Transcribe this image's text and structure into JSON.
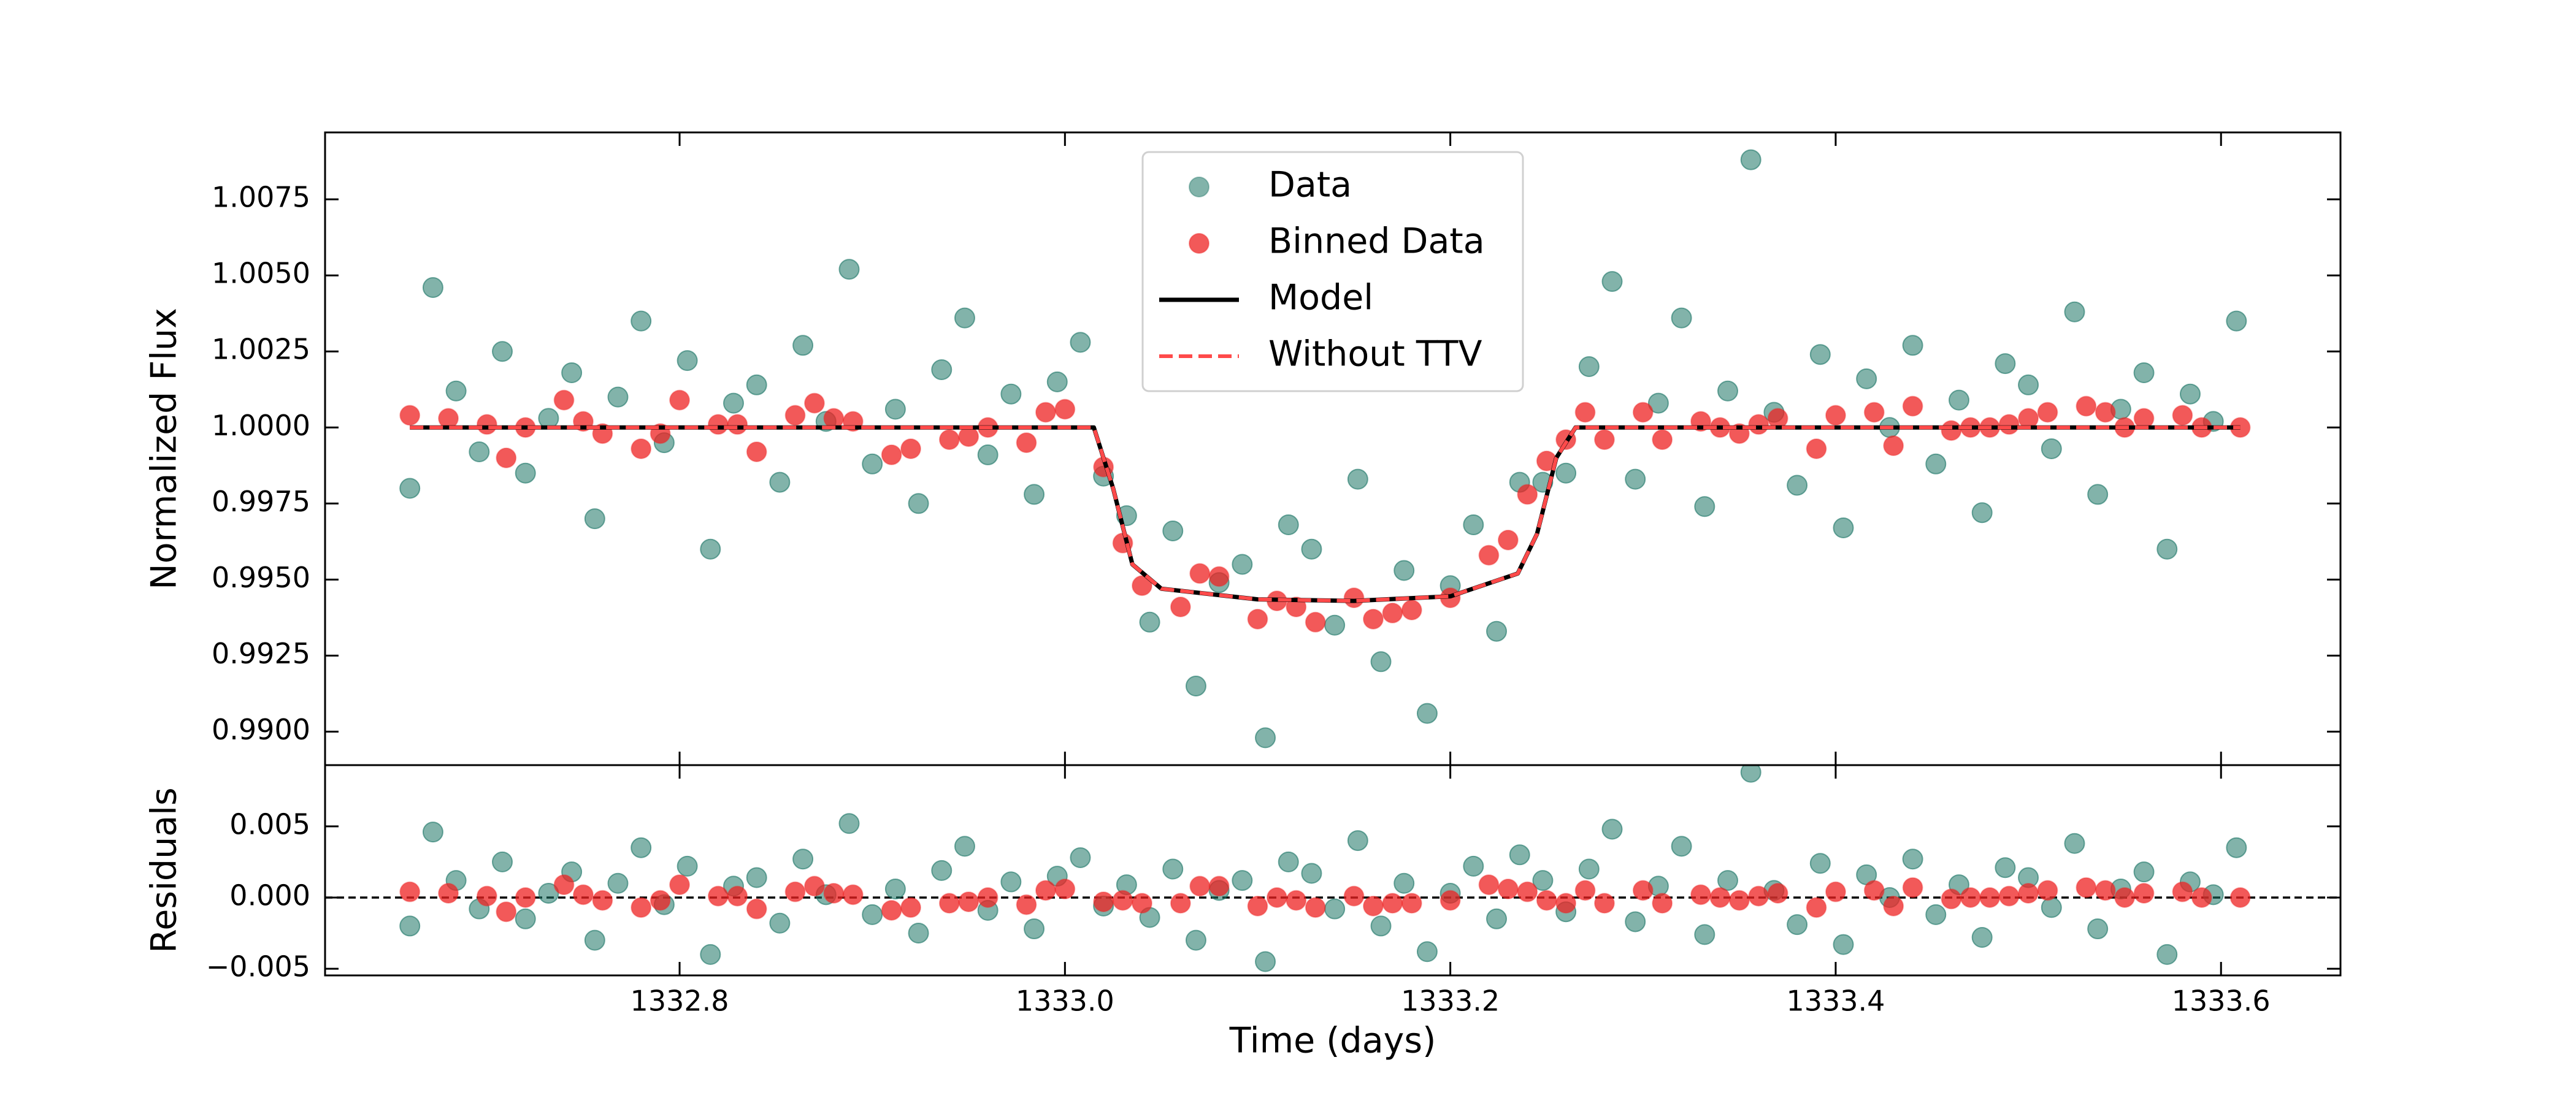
{
  "chart_data": [
    {
      "type": "scatter",
      "ylabel": "Normalized Flux",
      "xlim": [
        1332.616,
        1333.662
      ],
      "ylim": [
        0.9889,
        1.0097
      ],
      "xticks": [
        1332.8,
        {
          "value": 1333,
          "label": "1333.0"
        },
        1333.2,
        1333.4,
        1333.6
      ],
      "xticklabels": false,
      "yticks": [
        {
          "value": 0.99,
          "label": "0.9900"
        },
        0.9925,
        {
          "value": 0.995,
          "label": "0.9950"
        },
        0.9975,
        {
          "value": 1,
          "label": "1.0000"
        },
        1.0025,
        {
          "value": 1.005,
          "label": "1.0050"
        },
        1.0075
      ],
      "legend": "upper center",
      "series": [
        {
          "name": "Data",
          "kind": "scatter",
          "color": "#1b7465",
          "x": [
            1332.66,
            1332.672,
            1332.684,
            1332.696,
            1332.708,
            1332.72,
            1332.732,
            1332.744,
            1332.756,
            1332.768,
            1332.78,
            1332.792,
            1332.804,
            1332.816,
            1332.828,
            1332.84,
            1332.852,
            1332.864,
            1332.876,
            1332.888,
            1332.9,
            1332.912,
            1332.924,
            1332.936,
            1332.948,
            1332.96,
            1332.972,
            1332.984,
            1332.996,
            1333.008,
            1333.02,
            1333.032,
            1333.044,
            1333.056,
            1333.068,
            1333.08,
            1333.092,
            1333.104,
            1333.116,
            1333.128,
            1333.14,
            1333.152,
            1333.164,
            1333.176,
            1333.188,
            1333.2,
            1333.212,
            1333.224,
            1333.236,
            1333.248,
            1333.26,
            1333.272,
            1333.284,
            1333.296,
            1333.308,
            1333.32,
            1333.332,
            1333.344,
            1333.356,
            1333.368,
            1333.38,
            1333.392,
            1333.404,
            1333.416,
            1333.428,
            1333.44,
            1333.452,
            1333.464,
            1333.476,
            1333.488,
            1333.5,
            1333.512,
            1333.524,
            1333.536,
            1333.548,
            1333.56,
            1333.572,
            1333.584,
            1333.596,
            1333.608
          ],
          "values": [
            0.998,
            1.0046,
            1.0012,
            0.9992,
            1.0025,
            0.9985,
            1.0003,
            1.0018,
            0.997,
            1.001,
            1.0035,
            0.9995,
            1.0022,
            0.996,
            1.0008,
            1.0014,
            0.9982,
            1.0027,
            1.0002,
            1.0052,
            0.9988,
            1.0006,
            0.9975,
            1.0019,
            1.0036,
            0.9991,
            1.0011,
            0.9978,
            1.0015,
            1.0028,
            0.9984,
            0.9971,
            0.9936,
            0.9966,
            0.9915,
            0.9949,
            0.9955,
            0.9898,
            0.9968,
            0.996,
            0.9935,
            0.9983,
            0.9923,
            0.9953,
            0.9906,
            0.9948,
            0.9968,
            0.9933,
            0.9982,
            0.9982,
            0.9985,
            1.002,
            1.0048,
            0.9983,
            1.0008,
            1.0036,
            0.9974,
            1.0012,
            1.0088,
            1.0005,
            0.9981,
            1.0024,
            0.9967,
            1.0016,
            1,
            1.0027,
            0.9988,
            1.0009,
            0.9972,
            1.0021,
            1.0014,
            0.9993,
            1.0038,
            0.9978,
            1.0006,
            1.0018,
            0.996,
            1.0011,
            1.0002,
            1.0035
          ]
        },
        {
          "name": "Binned Data",
          "kind": "scatter",
          "color": "#ee2222",
          "x": [
            1332.66,
            1332.68,
            1332.7,
            1332.71,
            1332.72,
            1332.74,
            1332.75,
            1332.76,
            1332.78,
            1332.79,
            1332.8,
            1332.82,
            1332.83,
            1332.84,
            1332.86,
            1332.87,
            1332.88,
            1332.89,
            1332.91,
            1332.92,
            1332.94,
            1332.95,
            1332.96,
            1332.98,
            1332.99,
            1333,
            1333.02,
            1333.03,
            1333.04,
            1333.06,
            1333.07,
            1333.08,
            1333.1,
            1333.11,
            1333.12,
            1333.13,
            1333.15,
            1333.16,
            1333.17,
            1333.18,
            1333.2,
            1333.22,
            1333.23,
            1333.24,
            1333.25,
            1333.26,
            1333.27,
            1333.28,
            1333.3,
            1333.31,
            1333.33,
            1333.34,
            1333.35,
            1333.36,
            1333.37,
            1333.39,
            1333.4,
            1333.42,
            1333.43,
            1333.44,
            1333.46,
            1333.47,
            1333.48,
            1333.49,
            1333.5,
            1333.51,
            1333.53,
            1333.54,
            1333.55,
            1333.56,
            1333.58,
            1333.59,
            1333.61
          ],
          "values": [
            1.0004,
            1.0003,
            1.0001,
            0.999,
            1,
            1.0009,
            1.0002,
            0.9998,
            0.9993,
            0.9998,
            1.0009,
            1.0001,
            1.0001,
            0.9992,
            1.0004,
            1.0008,
            1.0003,
            1.0002,
            0.9991,
            0.9993,
            0.9996,
            0.9997,
            1,
            0.9995,
            1.0005,
            1.0006,
            0.9987,
            0.9962,
            0.9948,
            0.9941,
            0.9952,
            0.9951,
            0.9937,
            0.9943,
            0.9941,
            0.9936,
            0.9944,
            0.9937,
            0.9939,
            0.994,
            0.9944,
            0.9958,
            0.9963,
            0.9978,
            0.9989,
            0.9996,
            1.0005,
            0.9996,
            1.0005,
            0.9996,
            1.0002,
            1,
            0.9998,
            1.0001,
            1.0003,
            0.9993,
            1.0004,
            1.0005,
            0.9994,
            1.0007,
            0.9999,
            1,
            1,
            1.0001,
            1.0003,
            1.0005,
            1.0007,
            1.0005,
            1,
            1.0003,
            1.0004,
            1,
            1
          ]
        },
        {
          "name": "Model",
          "kind": "line",
          "color": "#000000",
          "x": [
            1332.66,
            1333.015,
            1333.025,
            1333.035,
            1333.05,
            1333.1,
            1333.15,
            1333.2,
            1333.235,
            1333.245,
            1333.255,
            1333.265,
            1333.61
          ],
          "values": [
            1,
            1,
            0.998,
            0.9955,
            0.9947,
            0.99435,
            0.9943,
            0.99445,
            0.9952,
            0.9965,
            0.999,
            1,
            1
          ]
        },
        {
          "name": "Without TTV",
          "kind": "line",
          "dashed": true,
          "color": "#ff4a4a",
          "x": [
            1332.66,
            1333.015,
            1333.025,
            1333.035,
            1333.05,
            1333.1,
            1333.15,
            1333.2,
            1333.235,
            1333.245,
            1333.255,
            1333.265,
            1333.61
          ],
          "values": [
            1,
            1,
            0.998,
            0.9955,
            0.9947,
            0.99435,
            0.9943,
            0.99445,
            0.9952,
            0.9965,
            0.999,
            1,
            1
          ]
        }
      ]
    },
    {
      "type": "scatter",
      "ylabel": "Residuals",
      "xlabel": "Time (days)",
      "xlim": [
        1332.616,
        1333.662
      ],
      "ylim": [
        -0.00547,
        0.0093
      ],
      "xticks": [
        1332.8,
        {
          "value": 1333,
          "label": "1333.0"
        },
        1333.2,
        1333.4,
        1333.6
      ],
      "xticklabels": true,
      "yticks": [
        {
          "value": -0.005,
          "label": "−0.005"
        },
        {
          "value": 0,
          "label": "0.000"
        },
        0.005
      ],
      "hline": 0,
      "series": [
        {
          "kind": "scatter",
          "color": "#1b7465",
          "x": [
            1332.66,
            1332.672,
            1332.684,
            1332.696,
            1332.708,
            1332.72,
            1332.732,
            1332.744,
            1332.756,
            1332.768,
            1332.78,
            1332.792,
            1332.804,
            1332.816,
            1332.828,
            1332.84,
            1332.852,
            1332.864,
            1332.876,
            1332.888,
            1332.9,
            1332.912,
            1332.924,
            1332.936,
            1332.948,
            1332.96,
            1332.972,
            1332.984,
            1332.996,
            1333.008,
            1333.02,
            1333.032,
            1333.044,
            1333.056,
            1333.068,
            1333.08,
            1333.092,
            1333.104,
            1333.116,
            1333.128,
            1333.14,
            1333.152,
            1333.164,
            1333.176,
            1333.188,
            1333.2,
            1333.212,
            1333.224,
            1333.236,
            1333.248,
            1333.26,
            1333.272,
            1333.284,
            1333.296,
            1333.308,
            1333.32,
            1333.332,
            1333.344,
            1333.356,
            1333.368,
            1333.38,
            1333.392,
            1333.404,
            1333.416,
            1333.428,
            1333.44,
            1333.452,
            1333.464,
            1333.476,
            1333.488,
            1333.5,
            1333.512,
            1333.524,
            1333.536,
            1333.548,
            1333.56,
            1333.572,
            1333.584,
            1333.596,
            1333.608
          ],
          "values": [
            -0.002,
            0.0046,
            0.0012,
            -0.0008,
            0.0025,
            -0.0015,
            0.0003,
            0.0018,
            -0.003,
            0.001,
            0.0035,
            -0.0005,
            0.0022,
            -0.004,
            0.0008,
            0.0014,
            -0.0018,
            0.0027,
            0.0002,
            0.0052,
            -0.0012,
            0.0006,
            -0.0025,
            0.0019,
            0.0036,
            -0.0009,
            0.0011,
            -0.0022,
            0.0015,
            0.0028,
            -0.0006,
            0.0009,
            -0.0014,
            0.002,
            -0.003,
            0.0005,
            0.0012,
            -0.0045,
            0.0025,
            0.0017,
            -0.0008,
            0.004,
            -0.002,
            0.001,
            -0.0038,
            0.0003,
            0.0022,
            -0.0015,
            0.003,
            0.0012,
            -0.001,
            0.002,
            0.0048,
            -0.0017,
            0.0008,
            0.0036,
            -0.0026,
            0.0012,
            0.0088,
            0.0005,
            -0.0019,
            0.0024,
            -0.0033,
            0.0016,
            0,
            0.0027,
            -0.0012,
            0.0009,
            -0.0028,
            0.0021,
            0.0014,
            -0.0007,
            0.0038,
            -0.0022,
            0.0006,
            0.0018,
            -0.004,
            0.0011,
            0.0002,
            0.0035
          ]
        },
        {
          "kind": "scatter",
          "color": "#ee2222",
          "x": [
            1332.66,
            1332.68,
            1332.7,
            1332.71,
            1332.72,
            1332.74,
            1332.75,
            1332.76,
            1332.78,
            1332.79,
            1332.8,
            1332.82,
            1332.83,
            1332.84,
            1332.86,
            1332.87,
            1332.88,
            1332.89,
            1332.91,
            1332.92,
            1332.94,
            1332.95,
            1332.96,
            1332.98,
            1332.99,
            1333,
            1333.02,
            1333.03,
            1333.04,
            1333.06,
            1333.07,
            1333.08,
            1333.1,
            1333.11,
            1333.12,
            1333.13,
            1333.15,
            1333.16,
            1333.17,
            1333.18,
            1333.2,
            1333.22,
            1333.23,
            1333.24,
            1333.25,
            1333.26,
            1333.27,
            1333.28,
            1333.3,
            1333.31,
            1333.33,
            1333.34,
            1333.35,
            1333.36,
            1333.37,
            1333.39,
            1333.4,
            1333.42,
            1333.43,
            1333.44,
            1333.46,
            1333.47,
            1333.48,
            1333.49,
            1333.5,
            1333.51,
            1333.53,
            1333.54,
            1333.55,
            1333.56,
            1333.58,
            1333.59,
            1333.61
          ],
          "values": [
            0.0004,
            0.0003,
            0.0001,
            -0.001,
            0,
            0.0009,
            0.0002,
            -0.0002,
            -0.0007,
            -0.0002,
            0.0009,
            0.0001,
            0.0001,
            -0.0008,
            0.0004,
            0.0008,
            0.0003,
            0.0002,
            -0.0009,
            -0.0007,
            -0.0004,
            -0.0003,
            0,
            -0.0005,
            0.0005,
            0.0006,
            -0.0003,
            -0.0002,
            -0.0004,
            -0.0004,
            0.0008,
            0.0008,
            -0.0006,
            0,
            -0.0002,
            -0.0007,
            0.0001,
            -0.0006,
            -0.0004,
            -0.0004,
            -0.0002,
            0.0009,
            0.0006,
            0.0004,
            -0.0002,
            -0.0004,
            0.0005,
            -0.0004,
            0.0005,
            -0.0004,
            0.0002,
            0,
            -0.0002,
            0.0001,
            0.0003,
            -0.0007,
            0.0004,
            0.0005,
            -0.0006,
            0.0007,
            -0.0001,
            0,
            0,
            0.0001,
            0.0003,
            0.0005,
            0.0007,
            0.0005,
            0,
            0.0003,
            0.0004,
            0,
            0
          ]
        }
      ]
    }
  ]
}
